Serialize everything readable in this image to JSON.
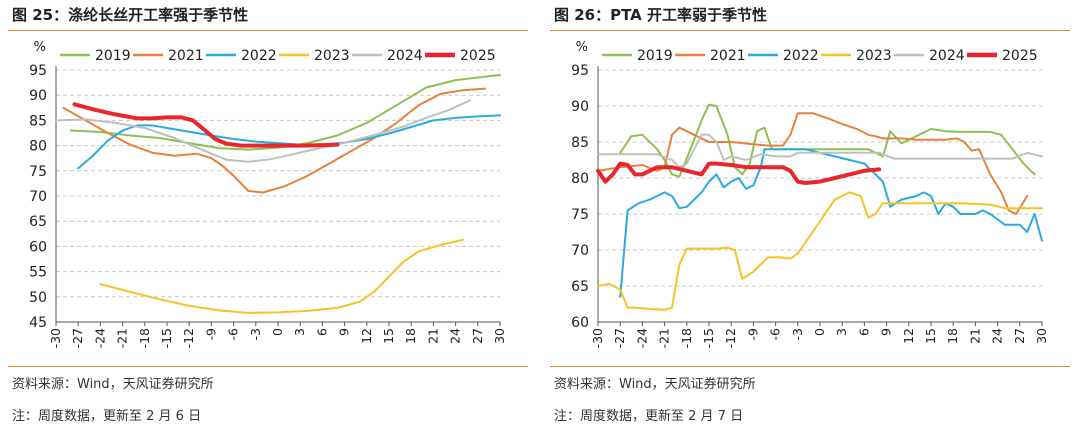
{
  "chart_data": [
    {
      "type": "line",
      "title": "图 25：涤纶长丝开工率强于季节性",
      "ylabel": "%",
      "ylim": [
        45,
        95
      ],
      "yticks": [
        45,
        50,
        55,
        60,
        65,
        70,
        75,
        80,
        85,
        90,
        95
      ],
      "xlim": [
        -30,
        30
      ],
      "xticks": [
        -30,
        -27,
        -24,
        -21,
        -18,
        -15,
        -12,
        -9,
        -6,
        -3,
        0,
        3,
        6,
        9,
        12,
        15,
        18,
        21,
        24,
        27,
        30
      ],
      "grid": "horizontal-dashed",
      "legend": "top",
      "source": "资料来源：Wind，天风证券研究所",
      "note": "注：周度数据，更新至 2 月 6 日",
      "series": [
        {
          "name": "2019",
          "color": "#8cc152",
          "width": 2,
          "x": [
            -28,
            -24,
            -20,
            -16,
            -12,
            -8,
            -4,
            0,
            4,
            8,
            12,
            16,
            20,
            24,
            28,
            30
          ],
          "y": [
            83,
            82.7,
            82,
            81.5,
            80.5,
            79.5,
            79.2,
            79.6,
            80.5,
            82,
            84.5,
            88,
            91.5,
            93,
            93.7,
            94
          ]
        },
        {
          "name": "2021",
          "color": "#e8813c",
          "width": 2,
          "x": [
            -29,
            -26,
            -23,
            -20,
            -17,
            -14,
            -11,
            -9,
            -7.5,
            -6,
            -4,
            -2,
            1,
            4,
            7,
            10,
            13,
            16,
            19,
            22,
            25,
            28
          ],
          "y": [
            87.5,
            85,
            82.5,
            80.2,
            78.6,
            78,
            78.4,
            77.5,
            76,
            74,
            71,
            70.7,
            72,
            74,
            76.5,
            79,
            81.5,
            84.5,
            88,
            90.3,
            91,
            91.3
          ]
        },
        {
          "name": "2022",
          "color": "#29aae1",
          "width": 2,
          "x": [
            -27,
            -25,
            -23,
            -21,
            -19,
            -17,
            -15,
            -13,
            -11,
            -9,
            -6,
            -3,
            0,
            3,
            6,
            9,
            12,
            15,
            18,
            21,
            24,
            27,
            30
          ],
          "y": [
            75.5,
            78,
            81,
            83,
            84,
            84,
            83.5,
            83,
            82.5,
            82,
            81.3,
            80.8,
            80.5,
            80.2,
            80.2,
            80.6,
            81.3,
            82.4,
            83.7,
            85,
            85.5,
            85.8,
            86
          ]
        },
        {
          "name": "2023",
          "color": "#f5c227",
          "width": 2,
          "x": [
            -24,
            -20,
            -16,
            -12,
            -8,
            -4,
            0,
            4,
            8,
            11,
            13,
            15,
            17,
            19,
            22,
            25
          ],
          "y": [
            52.5,
            51,
            49.5,
            48.2,
            47.3,
            46.8,
            46.9,
            47.2,
            47.8,
            49,
            51,
            54,
            57,
            59,
            60.3,
            61.3
          ]
        },
        {
          "name": "2024",
          "color": "#bfbfbf",
          "width": 2,
          "x": [
            -30,
            -26,
            -22,
            -18,
            -14,
            -10,
            -7,
            -4,
            -1,
            2,
            5,
            8,
            11,
            14,
            17,
            20,
            23,
            26
          ],
          "y": [
            85,
            85.2,
            84.5,
            83.5,
            81.5,
            79,
            77.2,
            76.8,
            77.3,
            78.3,
            79.3,
            80.2,
            81.3,
            82.5,
            83.8,
            85.5,
            87,
            89
          ]
        },
        {
          "name": "2025",
          "color": "#e8262c",
          "width": 4,
          "x": [
            -27.5,
            -25,
            -22,
            -19,
            -17,
            -15,
            -13,
            -11.5,
            -10,
            -8.5,
            -7,
            -5,
            -3,
            0,
            3,
            6,
            8
          ],
          "y": [
            88.2,
            87.2,
            86.2,
            85.4,
            85.4,
            85.6,
            85.6,
            85,
            83.2,
            81.3,
            80.4,
            80,
            80,
            80,
            80,
            80.1,
            80.2
          ]
        }
      ]
    },
    {
      "type": "line",
      "title": "图 26：PTA 开工率弱于季节性",
      "ylabel": "%",
      "ylim": [
        60,
        95
      ],
      "yticks": [
        60,
        65,
        70,
        75,
        80,
        85,
        90,
        95
      ],
      "xlim": [
        -30,
        30
      ],
      "xticks": [
        -30,
        -27,
        -24,
        -21,
        -18,
        -15,
        -12,
        -9,
        -6,
        -3,
        0,
        3,
        6,
        9,
        12,
        15,
        18,
        21,
        24,
        27,
        30
      ],
      "grid": "horizontal-dashed",
      "legend": "top",
      "source": "资料来源：Wind，天风证券研究所",
      "note": "注：周度数据，更新至 2 月 7 日",
      "series": [
        {
          "name": "2019",
          "color": "#8cc152",
          "width": 2,
          "x": [
            -27,
            -25.5,
            -24,
            -22,
            -21,
            -20,
            -19,
            -17.5,
            -16,
            -15,
            -14,
            -12.5,
            -11.5,
            -10.5,
            -9.5,
            -8.5,
            -7.5,
            -6.5,
            -5,
            -3,
            -1,
            1,
            3,
            5,
            6.5,
            7.5,
            8.5,
            9.5,
            11,
            13,
            15,
            17,
            19,
            21,
            23,
            24.5,
            26,
            27.5,
            29
          ],
          "y": [
            83.5,
            85.8,
            86,
            84,
            82.5,
            80.5,
            80.2,
            84,
            88,
            90.2,
            90,
            86,
            81.5,
            80.5,
            82,
            86.5,
            87,
            84,
            84,
            84,
            84,
            84,
            84,
            84,
            84,
            83.5,
            83,
            86.5,
            84.8,
            85.8,
            86.8,
            86.5,
            86.4,
            86.4,
            86.4,
            86,
            84,
            82,
            80.5
          ]
        },
        {
          "name": "2021",
          "color": "#e8813c",
          "width": 2,
          "x": [
            -30,
            -27,
            -24,
            -22,
            -21,
            -20,
            -19,
            -17,
            -15,
            -12,
            -9,
            -7,
            -5,
            -4,
            -3,
            -1,
            1,
            3,
            5,
            6.5,
            7.5,
            8.5,
            9.5,
            11,
            13,
            15,
            17,
            18.5,
            19.5,
            20.5,
            21.5,
            23,
            24.5,
            25.5,
            26.5,
            28
          ],
          "y": [
            81,
            81.5,
            81.8,
            81,
            81.5,
            86,
            87,
            86,
            85,
            85,
            84.7,
            84.5,
            84.5,
            86,
            89,
            89,
            88.3,
            87.5,
            86.8,
            86,
            85.8,
            85.5,
            85.5,
            85.5,
            85.3,
            85.3,
            85.3,
            85.5,
            85,
            83.8,
            84,
            80.5,
            78,
            75.5,
            75,
            77.5
          ]
        },
        {
          "name": "2022",
          "color": "#29aae1",
          "width": 2,
          "x": [
            -27,
            -26,
            -24.5,
            -23,
            -21,
            -20,
            -19,
            -18,
            -16,
            -15,
            -14,
            -13,
            -12,
            -11,
            -10,
            -9,
            -8,
            -7.5,
            -6,
            -4,
            -2,
            0,
            2,
            4,
            6,
            7.5,
            8.5,
            9.5,
            11,
            13,
            14,
            15,
            16,
            17,
            18,
            19,
            20,
            21,
            22,
            23,
            25,
            27,
            28,
            29,
            30
          ],
          "y": [
            63.5,
            75.5,
            76.5,
            77,
            78,
            77.5,
            75.8,
            76,
            78,
            79.5,
            80.5,
            78.7,
            79.5,
            80,
            78.5,
            79,
            81.5,
            84,
            84,
            84,
            84,
            83.5,
            83,
            82.5,
            82,
            80.5,
            79.5,
            76,
            77,
            77.5,
            78,
            77.5,
            75,
            76.5,
            76,
            75,
            75,
            75,
            75.5,
            75,
            73.5,
            73.5,
            72.5,
            75,
            71.3
          ]
        },
        {
          "name": "2023",
          "color": "#f5c227",
          "width": 2,
          "x": [
            -30,
            -28.5,
            -27,
            -26,
            -25,
            -23,
            -21,
            -20,
            -19,
            -18,
            -16,
            -14,
            -12.5,
            -11.5,
            -10.5,
            -9,
            -8,
            -7,
            -5.5,
            -4,
            -3,
            -2,
            0,
            2,
            4,
            5.5,
            6.5,
            7.5,
            8.5,
            9.5,
            11,
            13,
            15,
            17,
            19,
            21,
            23,
            25,
            27,
            29,
            30
          ],
          "y": [
            65,
            65.3,
            64.5,
            62,
            62,
            61.8,
            61.7,
            62,
            68,
            70.2,
            70.2,
            70.2,
            70.3,
            70,
            66,
            67,
            68,
            69,
            69,
            68.8,
            69.5,
            71,
            74,
            77,
            78,
            77.5,
            74.5,
            75,
            76.5,
            76.5,
            76.5,
            76.5,
            76.5,
            76.5,
            76.5,
            76.4,
            76.3,
            75.8,
            75.8,
            75.8,
            75.8
          ]
        },
        {
          "name": "2024",
          "color": "#bfbfbf",
          "width": 2,
          "x": [
            -30,
            -26,
            -22,
            -20,
            -19,
            -18,
            -16,
            -15,
            -14,
            -13,
            -12,
            -10,
            -8,
            -6,
            -4,
            -3,
            -2,
            0,
            2,
            4,
            6,
            8,
            10,
            12,
            14,
            16,
            18,
            20,
            22,
            24,
            26,
            28,
            30
          ],
          "y": [
            83.3,
            83.3,
            83.3,
            82.5,
            81.5,
            82,
            86,
            86,
            85,
            82.5,
            83,
            82.5,
            83.3,
            83,
            83,
            83.5,
            83.5,
            83.5,
            83.5,
            83.5,
            83.5,
            83.5,
            82.7,
            82.7,
            82.7,
            82.7,
            82.7,
            82.7,
            82.7,
            82.7,
            82.7,
            83.5,
            83
          ]
        },
        {
          "name": "2025",
          "color": "#e8262c",
          "width": 4,
          "x": [
            -30,
            -29,
            -28,
            -27,
            -26,
            -25,
            -24,
            -23,
            -22,
            -21,
            -20,
            -18,
            -16,
            -15,
            -14,
            -12,
            -10,
            -8,
            -6,
            -5,
            -4,
            -3,
            -2,
            0,
            2,
            4,
            6,
            8
          ],
          "y": [
            81,
            79.5,
            80.5,
            82,
            81.8,
            80.5,
            80.5,
            81,
            81.5,
            81.5,
            81.5,
            81,
            80.5,
            82,
            82,
            81.8,
            81.5,
            81.5,
            81.5,
            81.5,
            81,
            79.5,
            79.3,
            79.5,
            80,
            80.5,
            81,
            81.2
          ]
        }
      ]
    }
  ]
}
